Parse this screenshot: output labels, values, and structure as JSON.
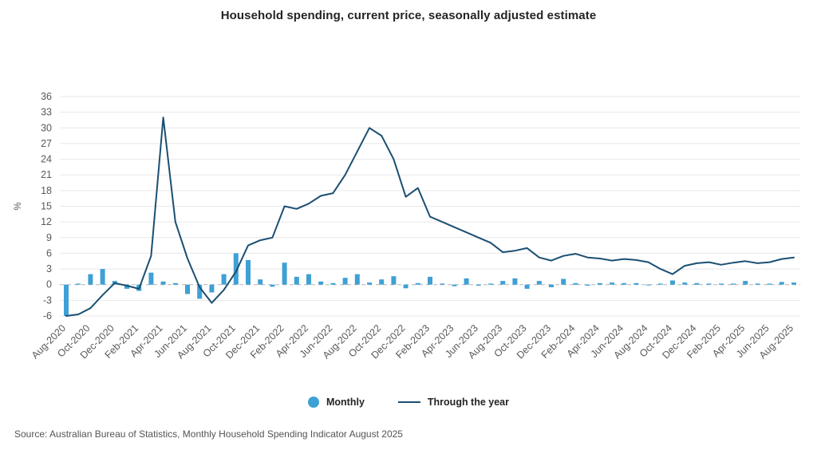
{
  "page": {
    "title": "Household spending, current price, seasonally adjusted estimate",
    "source": "Source: Australian Bureau of Statistics, Monthly Household Spending Indicator August 2025"
  },
  "legend": {
    "monthly": "Monthly",
    "through_the_year": "Through the year"
  },
  "colors": {
    "bar": "#3fa0d5",
    "line": "#1b4f72",
    "grid": "#e8e8e8",
    "zero_line": "#b3b3b3",
    "axis_text": "#595959"
  },
  "chart_data": {
    "type": "bar",
    "subtype": "bar+line combo",
    "title": "Household spending, current price, seasonally adjusted estimate",
    "xlabel": "",
    "ylabel": "%",
    "ylim": [
      -6,
      36
    ],
    "yticks": [
      -6,
      -3,
      0,
      3,
      6,
      9,
      12,
      15,
      18,
      21,
      24,
      27,
      30,
      33,
      36
    ],
    "xtick_every": 2,
    "grid": true,
    "legend_position": "bottom",
    "categories": [
      "Aug-2020",
      "Sep-2020",
      "Oct-2020",
      "Nov-2020",
      "Dec-2020",
      "Jan-2021",
      "Feb-2021",
      "Mar-2021",
      "Apr-2021",
      "May-2021",
      "Jun-2021",
      "Jul-2021",
      "Aug-2021",
      "Sep-2021",
      "Oct-2021",
      "Nov-2021",
      "Dec-2021",
      "Jan-2022",
      "Feb-2022",
      "Mar-2022",
      "Apr-2022",
      "May-2022",
      "Jun-2022",
      "Jul-2022",
      "Aug-2022",
      "Sep-2022",
      "Oct-2022",
      "Nov-2022",
      "Dec-2022",
      "Jan-2023",
      "Feb-2023",
      "Mar-2023",
      "Apr-2023",
      "May-2023",
      "Jun-2023",
      "Jul-2023",
      "Aug-2023",
      "Sep-2023",
      "Oct-2023",
      "Nov-2023",
      "Dec-2023",
      "Jan-2024",
      "Feb-2024",
      "Mar-2024",
      "Apr-2024",
      "May-2024",
      "Jun-2024",
      "Jul-2024",
      "Aug-2024",
      "Sep-2024",
      "Oct-2024",
      "Nov-2024",
      "Dec-2024",
      "Jan-2025",
      "Feb-2025",
      "Mar-2025",
      "Apr-2025",
      "May-2025",
      "Jun-2025",
      "Jul-2025",
      "Aug-2025"
    ],
    "series": [
      {
        "name": "Monthly",
        "type": "bar",
        "values": [
          -6.0,
          0.2,
          2.0,
          3.0,
          0.7,
          -0.8,
          -1.2,
          2.3,
          0.6,
          0.3,
          -1.8,
          -2.7,
          -1.5,
          2.0,
          6.0,
          4.7,
          1.0,
          -0.4,
          4.2,
          1.5,
          2.0,
          0.6,
          0.3,
          1.3,
          2.0,
          0.4,
          1.0,
          1.6,
          -0.7,
          0.3,
          1.5,
          0.2,
          -0.3,
          1.2,
          -0.2,
          0.2,
          0.7,
          1.2,
          -0.8,
          0.7,
          -0.5,
          1.1,
          0.3,
          -0.2,
          0.3,
          0.4,
          0.3,
          0.3,
          -0.1,
          0.2,
          0.8,
          0.4,
          0.3,
          0.2,
          0.2,
          0.2,
          0.7,
          0.2,
          0.2,
          0.5,
          0.4
        ]
      },
      {
        "name": "Through the year",
        "type": "line",
        "values": [
          -6.0,
          -5.7,
          -4.5,
          -2.0,
          0.3,
          -0.2,
          -0.8,
          5.5,
          32.0,
          12.0,
          5.0,
          -0.5,
          -3.5,
          -1.0,
          2.5,
          7.5,
          8.5,
          9.0,
          15.0,
          14.5,
          15.5,
          17.0,
          17.5,
          21.0,
          25.5,
          30.0,
          28.5,
          24.0,
          16.8,
          18.5,
          13.0,
          12.0,
          11.0,
          10.0,
          9.0,
          8.0,
          6.2,
          6.5,
          7.0,
          5.2,
          4.6,
          5.5,
          5.9,
          5.2,
          5.0,
          4.6,
          4.9,
          4.7,
          4.3,
          3.0,
          2.0,
          3.6,
          4.1,
          4.3,
          3.8,
          4.2,
          4.5,
          4.1,
          4.3,
          4.9,
          5.2
        ]
      }
    ]
  }
}
